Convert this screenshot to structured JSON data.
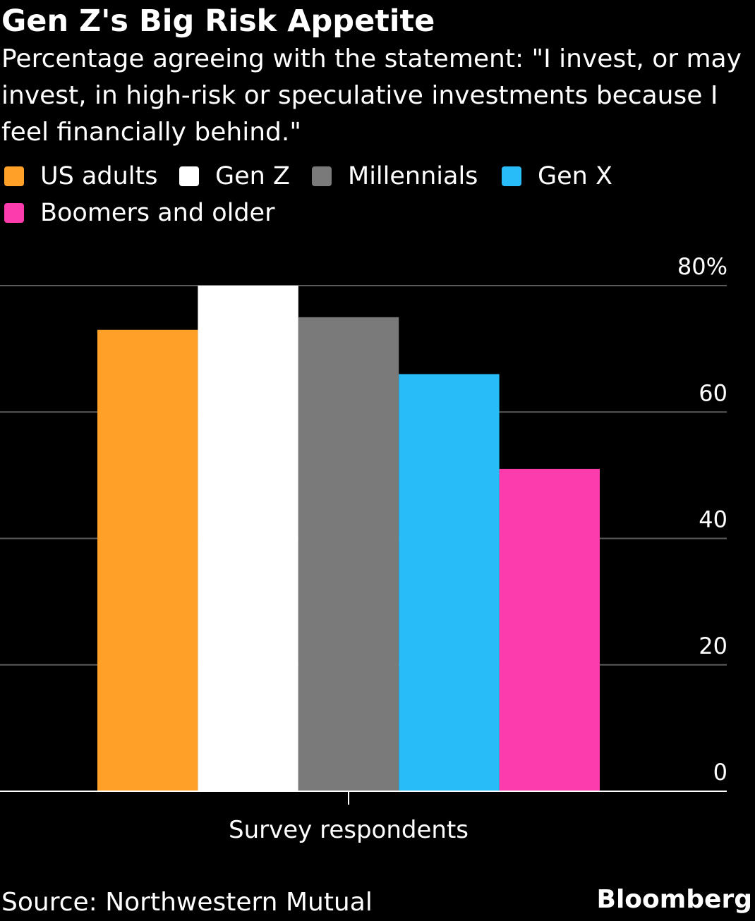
{
  "title": "Gen Z's Big Risk Appetite",
  "subtitle": "Percentage agreeing with the statement: \"I invest, or may invest, in high-risk or speculative investments because I feel financially behind.\"",
  "legend": [
    {
      "label": "US adults",
      "color": "#ffa028"
    },
    {
      "label": "Gen Z",
      "color": "#ffffff"
    },
    {
      "label": "Millennials",
      "color": "#7a7a7a"
    },
    {
      "label": "Gen X",
      "color": "#28bcf8"
    },
    {
      "label": "Boomers and older",
      "color": "#fc3cac"
    }
  ],
  "chart_data": {
    "type": "bar",
    "categories": [
      "Survey respondents"
    ],
    "series": [
      {
        "name": "US adults",
        "values": [
          73
        ],
        "color": "#ffa028"
      },
      {
        "name": "Gen Z",
        "values": [
          80
        ],
        "color": "#ffffff"
      },
      {
        "name": "Millennials",
        "values": [
          75
        ],
        "color": "#7a7a7a"
      },
      {
        "name": "Gen X",
        "values": [
          66
        ],
        "color": "#28bcf8"
      },
      {
        "name": "Boomers and older",
        "values": [
          51
        ],
        "color": "#fc3cac"
      }
    ],
    "xlabel": "Survey respondents",
    "ylabel": "",
    "ylim": [
      0,
      80
    ],
    "yticks": [
      0,
      20,
      40,
      60,
      80
    ],
    "ytick_labels": [
      "0",
      "20",
      "40",
      "60",
      "80%"
    ],
    "y_axis_side": "right",
    "grid": true,
    "legend_position": "top",
    "background": "#000000",
    "gridline_color": "#5a5a5a",
    "axis_color": "#ffffff"
  },
  "source": "Source: Northwestern Mutual",
  "brand": "Bloomberg"
}
